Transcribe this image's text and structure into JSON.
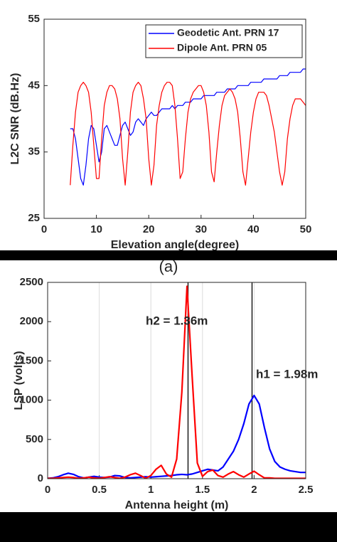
{
  "caption": "(a)",
  "chart_data": [
    {
      "type": "line",
      "xlabel": "Elevation angle(degree)",
      "ylabel": "L2C SNR (dB.Hz)",
      "xlim": [
        0,
        50
      ],
      "xticks": [
        0,
        10,
        20,
        30,
        40,
        50
      ],
      "ylim": [
        25,
        55
      ],
      "yticks": [
        25,
        35,
        45,
        55
      ],
      "legend": "top-right",
      "x": [
        5,
        5.5,
        6,
        6.5,
        7,
        7.5,
        8,
        8.5,
        9,
        9.5,
        10,
        10.5,
        11,
        11.5,
        12,
        12.5,
        13,
        13.5,
        14,
        14.5,
        15,
        15.5,
        16,
        16.5,
        17,
        17.5,
        18,
        18.5,
        19,
        19.5,
        20,
        20.5,
        21,
        21.5,
        22,
        22.5,
        23,
        23.5,
        24,
        24.5,
        25,
        25.5,
        26,
        26.5,
        27,
        27.5,
        28,
        28.5,
        29,
        29.5,
        30,
        30.5,
        31,
        31.5,
        32,
        32.5,
        33,
        33.5,
        34,
        34.5,
        35,
        35.5,
        36,
        36.5,
        37,
        37.5,
        38,
        38.5,
        39,
        39.5,
        40,
        40.5,
        41,
        41.5,
        42,
        42.5,
        43,
        43.5,
        44,
        44.5,
        45,
        45.5,
        46,
        46.5,
        47,
        47.5,
        48,
        48.5,
        49,
        49.5,
        50
      ],
      "series": [
        {
          "name": "Geodetic Ant. PRN 17",
          "color": "#0000ff",
          "values": [
            38.5,
            38.5,
            37,
            34,
            31,
            30,
            33,
            37,
            39,
            38.5,
            36,
            33.5,
            35,
            38.5,
            39,
            38,
            37,
            36,
            36,
            37.5,
            39,
            39.5,
            38.5,
            37.5,
            38,
            39.5,
            40,
            39.5,
            39,
            40,
            40.5,
            41,
            40.5,
            40.5,
            41,
            41.5,
            41.5,
            41.5,
            41.5,
            42,
            41.5,
            42,
            42,
            42,
            42.5,
            42.5,
            42.5,
            43,
            43,
            43,
            43,
            43.5,
            43.5,
            43.5,
            43.5,
            43.5,
            44,
            44,
            44,
            44,
            44.5,
            44.5,
            44.5,
            44.5,
            45,
            45,
            45,
            45,
            45,
            45.5,
            45.5,
            45.5,
            45.5,
            45.5,
            46,
            46,
            46,
            46,
            46,
            46,
            46.5,
            46.5,
            46.5,
            46.5,
            47,
            47,
            47,
            47,
            47,
            47.5,
            47.5
          ]
        },
        {
          "name": "Dipole Ant. PRN 05",
          "color": "#ff0000",
          "values": [
            30,
            36,
            41,
            44,
            45,
            45.5,
            45,
            44,
            41,
            36,
            31,
            31,
            37,
            42,
            44,
            45,
            45,
            44.5,
            43,
            40,
            34,
            30,
            35,
            41,
            44,
            45,
            45.5,
            45,
            43,
            40,
            34,
            30,
            33,
            39,
            42,
            44,
            45,
            45.5,
            45.5,
            45,
            42,
            37,
            31,
            32,
            37,
            41,
            43,
            44,
            44.5,
            45,
            45,
            44,
            42,
            38,
            32,
            30.5,
            35,
            39,
            42,
            43.5,
            44,
            44.5,
            44,
            43,
            41,
            37,
            32,
            30,
            34,
            38,
            41,
            43,
            44,
            44,
            44,
            43.5,
            42,
            40,
            38,
            35,
            32,
            30,
            32,
            37,
            40,
            42,
            43,
            43,
            43,
            42.5,
            42
          ]
        }
      ]
    },
    {
      "type": "line",
      "xlabel": "Antenna height (m)",
      "ylabel": "LSP (volts)",
      "xlim": [
        0,
        2.5
      ],
      "xticks": [
        0,
        0.5,
        1,
        1.5,
        2,
        2.5
      ],
      "ylim": [
        0,
        2500
      ],
      "yticks": [
        0,
        500,
        1000,
        1500,
        2000,
        2500
      ],
      "grid": "x",
      "vlines": [
        1.36,
        1.98
      ],
      "annotations": [
        "h2 = 1.36m",
        "h1 = 1.98m"
      ],
      "x": [
        0,
        0.05,
        0.1,
        0.15,
        0.2,
        0.25,
        0.3,
        0.35,
        0.4,
        0.45,
        0.5,
        0.55,
        0.6,
        0.65,
        0.7,
        0.75,
        0.8,
        0.85,
        0.9,
        0.95,
        1,
        1.05,
        1.1,
        1.15,
        1.2,
        1.25,
        1.3,
        1.35,
        1.4,
        1.45,
        1.5,
        1.55,
        1.6,
        1.65,
        1.7,
        1.75,
        1.8,
        1.85,
        1.9,
        1.95,
        2,
        2.05,
        2.1,
        2.15,
        2.2,
        2.25,
        2.3,
        2.35,
        2.4,
        2.45,
        2.5
      ],
      "series": [
        {
          "color": "#0000ff",
          "values": [
            5,
            10,
            25,
            50,
            70,
            55,
            25,
            10,
            20,
            30,
            20,
            15,
            20,
            40,
            35,
            15,
            10,
            15,
            20,
            25,
            20,
            25,
            30,
            35,
            40,
            50,
            55,
            50,
            60,
            80,
            100,
            120,
            110,
            100,
            150,
            250,
            350,
            500,
            700,
            950,
            1060,
            950,
            650,
            380,
            220,
            150,
            120,
            100,
            90,
            80,
            80
          ]
        },
        {
          "color": "#ff0000",
          "values": [
            5,
            5,
            10,
            15,
            20,
            15,
            5,
            10,
            20,
            10,
            5,
            15,
            25,
            15,
            5,
            20,
            50,
            70,
            40,
            5,
            40,
            120,
            170,
            60,
            20,
            250,
            1100,
            2450,
            1300,
            200,
            30,
            90,
            110,
            40,
            20,
            60,
            90,
            50,
            20,
            60,
            95,
            50,
            10,
            10,
            5,
            5,
            5,
            5,
            5,
            5,
            5
          ]
        }
      ]
    }
  ]
}
